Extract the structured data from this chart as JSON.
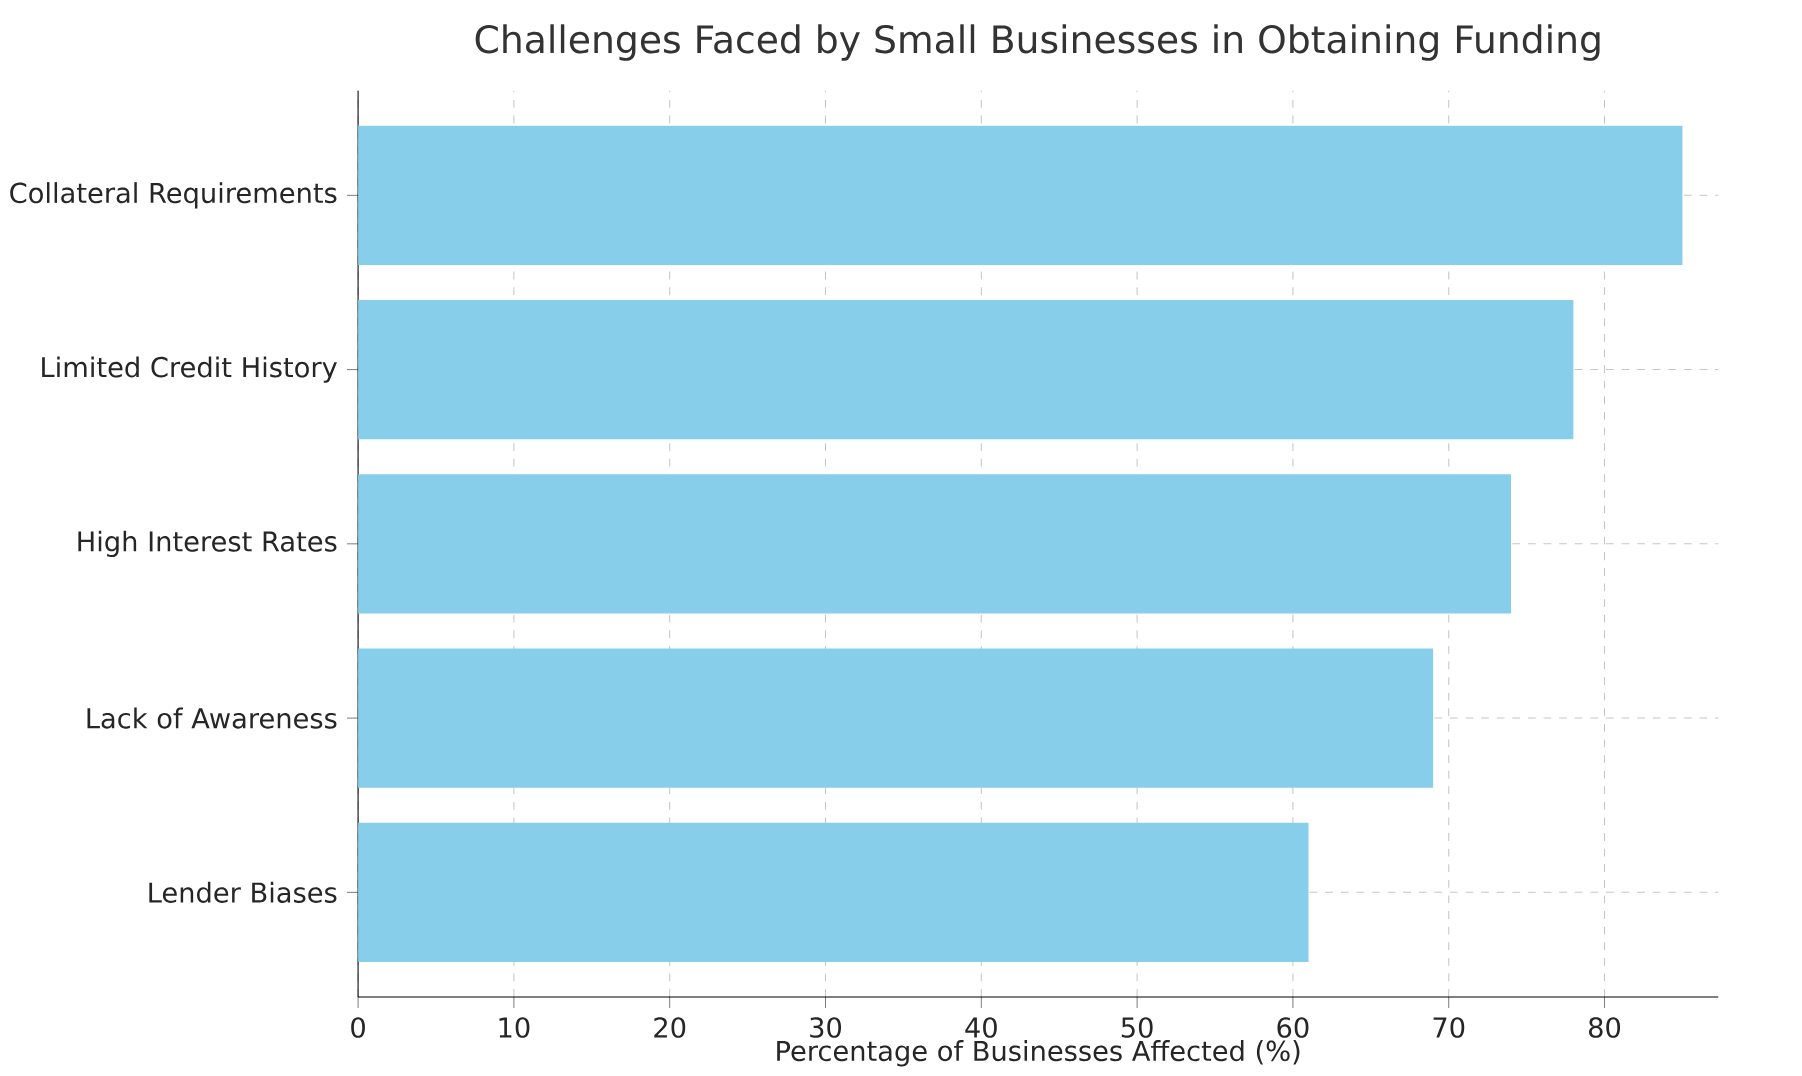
{
  "chart_data": {
    "type": "bar",
    "orientation": "horizontal",
    "title": "Challenges Faced by Small Businesses in Obtaining Funding",
    "xlabel": "Percentage of Businesses Affected (%)",
    "categories": [
      "Collateral Requirements",
      "Limited Credit History",
      "High Interest Rates",
      "Lack of Awareness",
      "Lender Biases"
    ],
    "values": [
      85,
      78,
      74,
      69,
      61
    ],
    "color": "#87ceeb",
    "xlim": [
      0,
      87.3
    ],
    "xticks": [
      0,
      10,
      20,
      30,
      40,
      50,
      60,
      70,
      80
    ],
    "grid": true
  }
}
